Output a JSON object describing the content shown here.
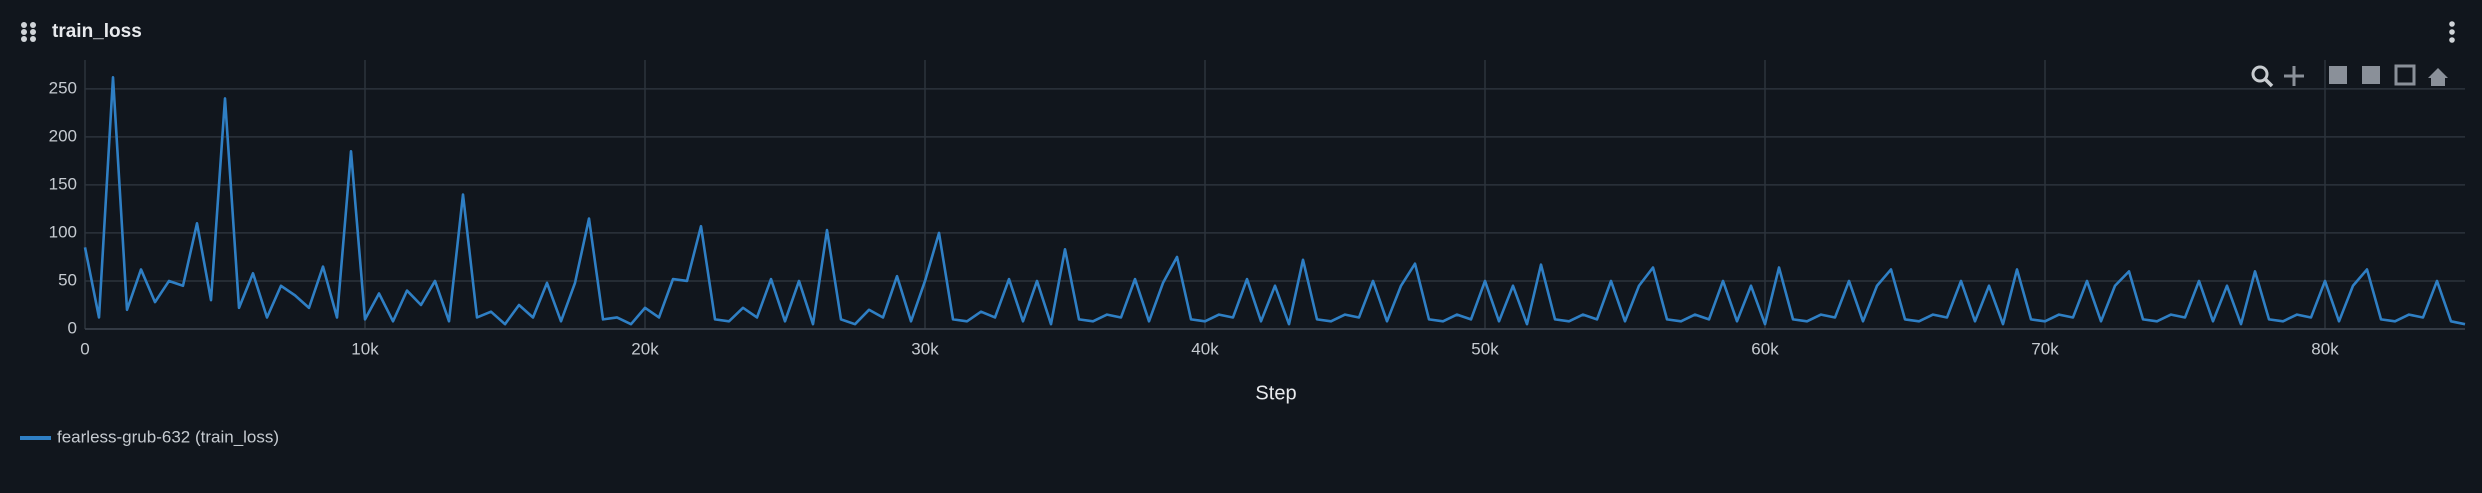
{
  "chart_data": {
    "type": "line",
    "title": "train_loss",
    "x_label": "Step",
    "x": [
      0,
      500,
      1000,
      1500,
      2000,
      2500,
      3000,
      3500,
      4000,
      4500,
      5000,
      5500,
      6000,
      6500,
      7000,
      7500,
      8000,
      8500,
      9000,
      9500,
      10000,
      10500,
      11000,
      11500,
      12000,
      12500,
      13000,
      13500,
      14000,
      14500,
      15000,
      15500,
      16000,
      16500,
      17000,
      17500,
      18000,
      18500,
      19000,
      19500,
      20000,
      20500,
      21000,
      21500,
      22000,
      22500,
      23000,
      23500,
      24000,
      24500,
      25000,
      25500,
      26000,
      26500,
      27000,
      27500,
      28000,
      28500,
      29000,
      29500,
      30000,
      30500,
      31000,
      31500,
      32000,
      32500,
      33000,
      33500,
      34000,
      34500,
      35000,
      35500,
      36000,
      36500,
      37000,
      37500,
      38000,
      38500,
      39000,
      39500,
      40000,
      40500,
      41000,
      41500,
      42000,
      42500,
      43000,
      43500,
      44000,
      44500,
      45000,
      45500,
      46000,
      46500,
      47000,
      47500,
      48000,
      48500,
      49000,
      49500,
      50000,
      50500,
      51000,
      51500,
      52000,
      52500,
      53000,
      53500,
      54000,
      54500,
      55000,
      55500,
      56000,
      56500,
      57000,
      57500,
      58000,
      58500,
      59000,
      59500,
      60000,
      60500,
      61000,
      61500,
      62000,
      62500,
      63000,
      63500,
      64000,
      64500,
      65000,
      65500,
      66000,
      66500,
      67000,
      67500,
      68000,
      68500,
      69000,
      69500,
      70000,
      70500,
      71000,
      71500,
      72000,
      72500,
      73000,
      73500,
      74000,
      74500,
      75000,
      75500,
      76000,
      76500,
      77000,
      77500,
      78000,
      78500,
      79000,
      79500,
      80000,
      80500,
      81000,
      81500,
      82000,
      82500,
      83000,
      83500,
      84000,
      84500,
      85000
    ],
    "series": [
      {
        "name": "fearless-grub-632 (train_loss)",
        "color": "#2f7fc4",
        "values": [
          85,
          12,
          262,
          20,
          62,
          28,
          50,
          45,
          110,
          30,
          240,
          22,
          58,
          12,
          45,
          35,
          22,
          65,
          12,
          185,
          10,
          37,
          8,
          40,
          25,
          50,
          8,
          140,
          12,
          18,
          5,
          25,
          12,
          48,
          8,
          48,
          115,
          10,
          12,
          5,
          22,
          12,
          52,
          50,
          107,
          10,
          8,
          22,
          12,
          52,
          8,
          50,
          5,
          103,
          10,
          5,
          20,
          12,
          55,
          8,
          50,
          100,
          10,
          8,
          18,
          12,
          52,
          8,
          50,
          5,
          83,
          10,
          8,
          15,
          12,
          52,
          8,
          48,
          75,
          10,
          8,
          15,
          12,
          52,
          8,
          45,
          5,
          72,
          10,
          8,
          15,
          12,
          50,
          8,
          45,
          68,
          10,
          8,
          15,
          10,
          50,
          8,
          45,
          5,
          67,
          10,
          8,
          15,
          10,
          50,
          8,
          45,
          64,
          10,
          8,
          15,
          10,
          50,
          8,
          45,
          5,
          64,
          10,
          8,
          15,
          12,
          50,
          8,
          45,
          62,
          10,
          8,
          15,
          12,
          50,
          8,
          45,
          5,
          62,
          10,
          8,
          15,
          12,
          50,
          8,
          45,
          60,
          10,
          8,
          15,
          12,
          50,
          8,
          45,
          5,
          60,
          10,
          8,
          15,
          12,
          50,
          8,
          45,
          62,
          10,
          8,
          15,
          12,
          50,
          8,
          5
        ]
      }
    ],
    "xlim": [
      0,
      85000
    ],
    "ylim": [
      0,
      280
    ],
    "xticks": [
      0,
      {
        "value": 10000,
        "label": "10k"
      },
      {
        "value": 20000,
        "label": "20k"
      },
      {
        "value": 30000,
        "label": "30k"
      },
      {
        "value": 40000,
        "label": "40k"
      },
      {
        "value": 50000,
        "label": "50k"
      },
      {
        "value": 60000,
        "label": "60k"
      },
      {
        "value": 70000,
        "label": "70k"
      },
      {
        "value": 80000,
        "label": "80k"
      }
    ],
    "yticks": [
      0,
      50,
      100,
      150,
      200,
      250
    ],
    "grid": true
  }
}
